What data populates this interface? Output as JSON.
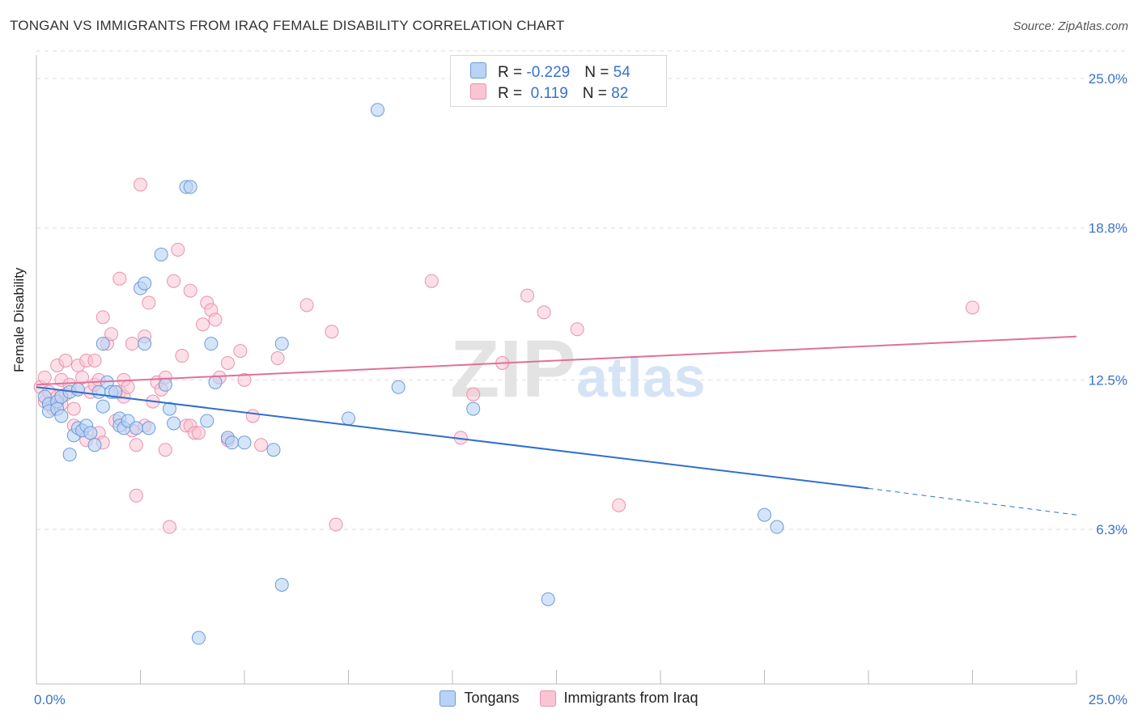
{
  "title": "TONGAN VS IMMIGRANTS FROM IRAQ FEMALE DISABILITY CORRELATION CHART",
  "source": "Source: ZipAtlas.com",
  "watermark": {
    "zip": "ZIP",
    "atlas": "atlas"
  },
  "legend_top": {
    "rows": [
      {
        "r_label": "R = ",
        "r_value": "-0.229",
        "n_label": "N = ",
        "n_value": "54"
      },
      {
        "r_label": "R = ",
        "r_value": " 0.119",
        "n_label": "N = ",
        "n_value": "82"
      }
    ]
  },
  "legend_bottom": {
    "tongans": "Tongans",
    "iraq": "Immigrants from Iraq"
  },
  "colors": {
    "blue_fill": "#b9d3f5",
    "blue_stroke": "#6b9bd8",
    "blue_line": "#2f6fcf",
    "pink_fill": "#f9c5d3",
    "pink_stroke": "#e992ad",
    "pink_line": "#e0709a",
    "tick_text": "#3a73c8",
    "grid": "#dddddd"
  },
  "chart_data": {
    "type": "scatter",
    "title": "TONGAN VS IMMIGRANTS FROM IRAQ FEMALE DISABILITY CORRELATION CHART",
    "xlabel": "",
    "ylabel": "Female Disability",
    "xlim": [
      0,
      25
    ],
    "ylim": [
      0,
      26.3
    ],
    "x_tick_labels": {
      "left": "0.0%",
      "right": "25.0%"
    },
    "y_ticks": [
      {
        "value": 6.3,
        "label": "6.3%"
      },
      {
        "value": 12.5,
        "label": "12.5%"
      },
      {
        "value": 18.8,
        "label": "18.8%"
      },
      {
        "value": 25.0,
        "label": "25.0%"
      }
    ],
    "series": [
      {
        "name": "Tongans",
        "r": -0.229,
        "n": 54,
        "trend": {
          "x1": 0,
          "y1": 12.2,
          "x2": 20,
          "y2": 8.0,
          "dash_x2": 25,
          "dash_y2": 6.9
        },
        "points": [
          [
            0.2,
            11.8
          ],
          [
            0.3,
            11.5
          ],
          [
            0.3,
            11.2
          ],
          [
            0.5,
            11.6
          ],
          [
            0.5,
            11.3
          ],
          [
            0.6,
            11.8
          ],
          [
            0.6,
            11.0
          ],
          [
            0.8,
            12.0
          ],
          [
            0.8,
            9.4
          ],
          [
            0.9,
            10.2
          ],
          [
            1.0,
            12.1
          ],
          [
            1.0,
            10.5
          ],
          [
            1.1,
            10.4
          ],
          [
            1.2,
            10.6
          ],
          [
            1.3,
            10.3
          ],
          [
            1.4,
            9.8
          ],
          [
            1.5,
            12.0
          ],
          [
            1.6,
            11.4
          ],
          [
            1.6,
            14.0
          ],
          [
            1.7,
            12.4
          ],
          [
            1.8,
            12.0
          ],
          [
            1.9,
            12.0
          ],
          [
            2.0,
            10.9
          ],
          [
            2.0,
            10.6
          ],
          [
            2.1,
            10.5
          ],
          [
            2.2,
            10.8
          ],
          [
            2.4,
            10.5
          ],
          [
            2.5,
            16.3
          ],
          [
            2.6,
            14.0
          ],
          [
            2.6,
            16.5
          ],
          [
            2.7,
            10.5
          ],
          [
            3.0,
            17.7
          ],
          [
            3.1,
            12.3
          ],
          [
            3.2,
            11.3
          ],
          [
            3.3,
            10.7
          ],
          [
            3.6,
            20.5
          ],
          [
            3.7,
            20.5
          ],
          [
            3.9,
            1.8
          ],
          [
            4.1,
            10.8
          ],
          [
            4.2,
            14.0
          ],
          [
            4.3,
            12.4
          ],
          [
            4.6,
            10.1
          ],
          [
            4.7,
            9.9
          ],
          [
            5.0,
            9.9
          ],
          [
            5.7,
            9.6
          ],
          [
            5.9,
            14.0
          ],
          [
            5.9,
            4.0
          ],
          [
            7.5,
            10.9
          ],
          [
            8.2,
            23.7
          ],
          [
            8.7,
            12.2
          ],
          [
            10.5,
            11.3
          ],
          [
            12.3,
            3.4
          ],
          [
            17.5,
            6.9
          ],
          [
            17.8,
            6.4
          ]
        ]
      },
      {
        "name": "Immigrants from Iraq",
        "r": 0.119,
        "n": 82,
        "trend": {
          "x1": 0,
          "y1": 12.3,
          "x2": 25,
          "y2": 14.3
        },
        "points": [
          [
            0.1,
            12.2
          ],
          [
            0.2,
            11.6
          ],
          [
            0.2,
            12.6
          ],
          [
            0.3,
            11.5
          ],
          [
            0.3,
            12.0
          ],
          [
            0.4,
            11.3
          ],
          [
            0.5,
            11.8
          ],
          [
            0.5,
            13.1
          ],
          [
            0.6,
            11.5
          ],
          [
            0.6,
            12.5
          ],
          [
            0.7,
            13.3
          ],
          [
            0.7,
            11.9
          ],
          [
            0.8,
            12.3
          ],
          [
            0.9,
            11.3
          ],
          [
            0.9,
            10.6
          ],
          [
            1.0,
            12.1
          ],
          [
            1.0,
            13.1
          ],
          [
            1.1,
            12.6
          ],
          [
            1.1,
            10.4
          ],
          [
            1.2,
            10.0
          ],
          [
            1.2,
            13.3
          ],
          [
            1.3,
            12.0
          ],
          [
            1.4,
            12.3
          ],
          [
            1.4,
            13.3
          ],
          [
            1.5,
            12.5
          ],
          [
            1.5,
            10.3
          ],
          [
            1.6,
            15.1
          ],
          [
            1.6,
            9.9
          ],
          [
            1.7,
            14.0
          ],
          [
            1.8,
            14.4
          ],
          [
            1.9,
            10.8
          ],
          [
            2.0,
            16.7
          ],
          [
            2.0,
            12.0
          ],
          [
            2.1,
            11.8
          ],
          [
            2.1,
            12.5
          ],
          [
            2.2,
            12.2
          ],
          [
            2.3,
            10.4
          ],
          [
            2.3,
            14.0
          ],
          [
            2.4,
            9.8
          ],
          [
            2.4,
            7.7
          ],
          [
            2.5,
            20.6
          ],
          [
            2.6,
            14.3
          ],
          [
            2.6,
            10.6
          ],
          [
            2.7,
            15.7
          ],
          [
            2.8,
            11.6
          ],
          [
            2.9,
            12.4
          ],
          [
            3.0,
            12.1
          ],
          [
            3.1,
            9.6
          ],
          [
            3.1,
            12.6
          ],
          [
            3.2,
            6.4
          ],
          [
            3.3,
            16.6
          ],
          [
            3.4,
            17.9
          ],
          [
            3.5,
            13.5
          ],
          [
            3.6,
            10.6
          ],
          [
            3.7,
            10.6
          ],
          [
            3.7,
            16.2
          ],
          [
            3.8,
            10.3
          ],
          [
            3.9,
            10.3
          ],
          [
            4.0,
            14.8
          ],
          [
            4.1,
            15.7
          ],
          [
            4.2,
            15.4
          ],
          [
            4.3,
            15.0
          ],
          [
            4.4,
            12.6
          ],
          [
            4.6,
            13.2
          ],
          [
            4.6,
            10.0
          ],
          [
            4.9,
            13.7
          ],
          [
            5.0,
            12.5
          ],
          [
            5.2,
            11.0
          ],
          [
            5.4,
            9.8
          ],
          [
            5.8,
            13.4
          ],
          [
            6.5,
            15.6
          ],
          [
            7.1,
            14.5
          ],
          [
            7.2,
            6.5
          ],
          [
            9.5,
            16.6
          ],
          [
            10.2,
            10.1
          ],
          [
            10.5,
            11.9
          ],
          [
            11.2,
            13.2
          ],
          [
            11.8,
            16.0
          ],
          [
            12.2,
            15.3
          ],
          [
            13.0,
            14.6
          ],
          [
            14.0,
            7.3
          ],
          [
            22.5,
            15.5
          ]
        ]
      }
    ]
  }
}
